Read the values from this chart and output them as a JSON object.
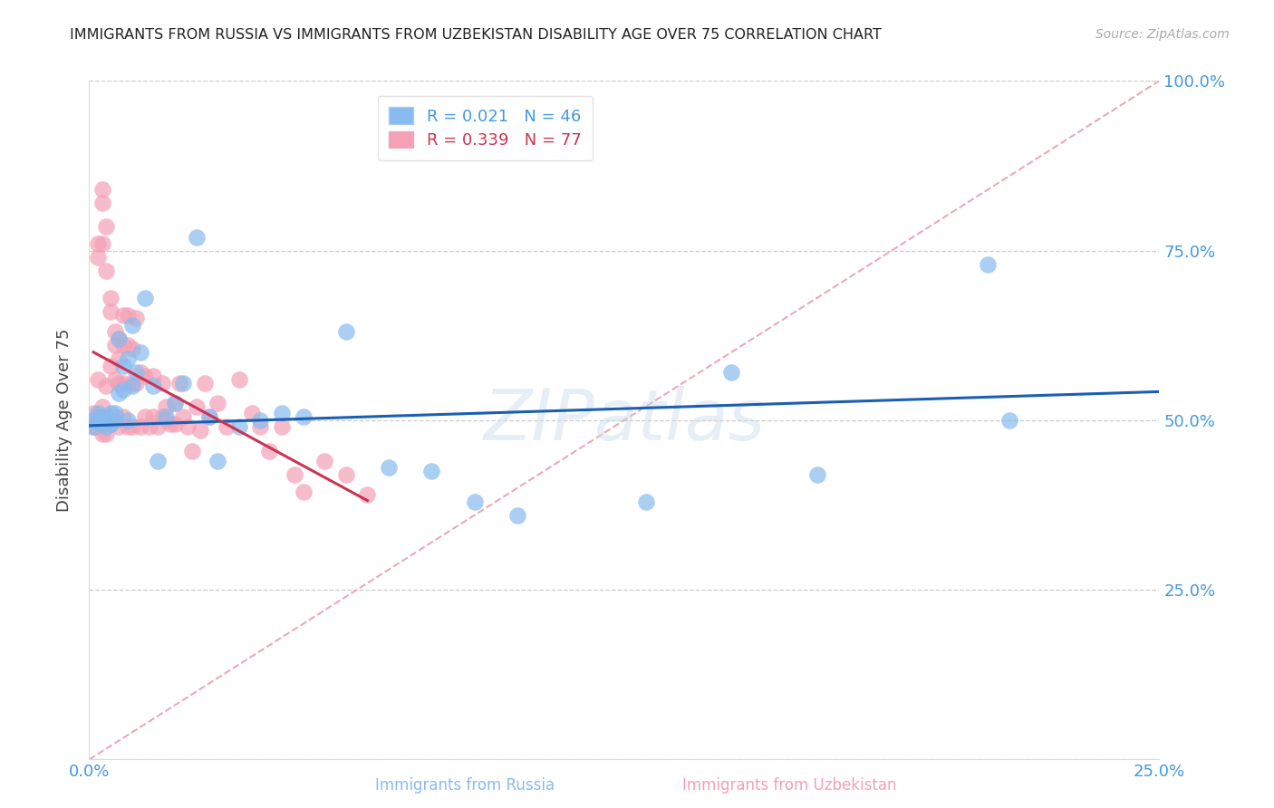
{
  "title": "IMMIGRANTS FROM RUSSIA VS IMMIGRANTS FROM UZBEKISTAN DISABILITY AGE OVER 75 CORRELATION CHART",
  "source": "Source: ZipAtlas.com",
  "ylabel": "Disability Age Over 75",
  "xlabel_russia": "Immigrants from Russia",
  "xlabel_uzbekistan": "Immigrants from Uzbekistan",
  "watermark": "ZIPatlas",
  "xlim": [
    0.0,
    0.25
  ],
  "ylim": [
    0.0,
    1.0
  ],
  "color_russia": "#88BBEE",
  "color_uzbek": "#F4A0B5",
  "color_trend_russia": "#1a5fb4",
  "color_trend_uzbek": "#cc3355",
  "color_diagonal": "#E8A0B0",
  "color_axis_text": "#4499DD",
  "legend_russia_R": "0.021",
  "legend_russia_N": "46",
  "legend_uzbek_R": "0.339",
  "legend_uzbek_N": "77",
  "russia_x": [
    0.001,
    0.001,
    0.002,
    0.002,
    0.003,
    0.003,
    0.004,
    0.004,
    0.005,
    0.005,
    0.005,
    0.006,
    0.006,
    0.007,
    0.007,
    0.008,
    0.008,
    0.009,
    0.009,
    0.01,
    0.01,
    0.011,
    0.012,
    0.013,
    0.015,
    0.016,
    0.018,
    0.02,
    0.022,
    0.025,
    0.028,
    0.03,
    0.035,
    0.04,
    0.045,
    0.05,
    0.06,
    0.07,
    0.08,
    0.09,
    0.1,
    0.13,
    0.15,
    0.17,
    0.21,
    0.215
  ],
  "russia_y": [
    0.5,
    0.49,
    0.51,
    0.5,
    0.495,
    0.505,
    0.5,
    0.49,
    0.5,
    0.51,
    0.495,
    0.5,
    0.51,
    0.62,
    0.54,
    0.58,
    0.545,
    0.59,
    0.5,
    0.64,
    0.55,
    0.57,
    0.6,
    0.68,
    0.55,
    0.44,
    0.505,
    0.525,
    0.555,
    0.77,
    0.505,
    0.44,
    0.49,
    0.5,
    0.51,
    0.505,
    0.63,
    0.43,
    0.425,
    0.38,
    0.36,
    0.38,
    0.57,
    0.42,
    0.73,
    0.5
  ],
  "uzbek_x": [
    0.001,
    0.001,
    0.001,
    0.002,
    0.002,
    0.002,
    0.002,
    0.002,
    0.003,
    0.003,
    0.003,
    0.003,
    0.003,
    0.004,
    0.004,
    0.004,
    0.004,
    0.005,
    0.005,
    0.005,
    0.005,
    0.005,
    0.006,
    0.006,
    0.006,
    0.006,
    0.007,
    0.007,
    0.007,
    0.007,
    0.008,
    0.008,
    0.008,
    0.008,
    0.009,
    0.009,
    0.009,
    0.01,
    0.01,
    0.01,
    0.011,
    0.011,
    0.012,
    0.012,
    0.013,
    0.013,
    0.014,
    0.015,
    0.015,
    0.016,
    0.017,
    0.017,
    0.018,
    0.018,
    0.019,
    0.02,
    0.02,
    0.021,
    0.022,
    0.023,
    0.024,
    0.025,
    0.026,
    0.027,
    0.028,
    0.03,
    0.032,
    0.035,
    0.038,
    0.04,
    0.042,
    0.045,
    0.048,
    0.05,
    0.055,
    0.06,
    0.065
  ],
  "uzbek_y": [
    0.5,
    0.49,
    0.51,
    0.76,
    0.74,
    0.56,
    0.49,
    0.505,
    0.84,
    0.82,
    0.52,
    0.48,
    0.76,
    0.785,
    0.72,
    0.55,
    0.48,
    0.68,
    0.66,
    0.58,
    0.505,
    0.495,
    0.63,
    0.61,
    0.56,
    0.505,
    0.59,
    0.555,
    0.49,
    0.62,
    0.655,
    0.61,
    0.555,
    0.505,
    0.655,
    0.61,
    0.49,
    0.605,
    0.555,
    0.49,
    0.65,
    0.555,
    0.57,
    0.49,
    0.565,
    0.505,
    0.49,
    0.565,
    0.505,
    0.49,
    0.555,
    0.505,
    0.5,
    0.52,
    0.495,
    0.525,
    0.495,
    0.555,
    0.505,
    0.49,
    0.455,
    0.52,
    0.485,
    0.555,
    0.505,
    0.525,
    0.49,
    0.56,
    0.51,
    0.49,
    0.455,
    0.49,
    0.42,
    0.395,
    0.44,
    0.42,
    0.39
  ]
}
